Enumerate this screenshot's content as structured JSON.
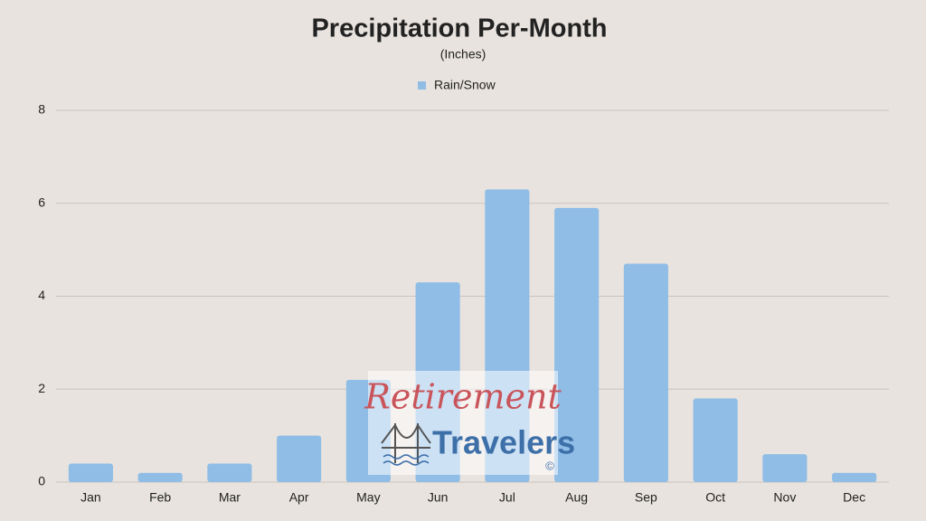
{
  "chart_data": {
    "type": "bar",
    "title": "Precipitation Per-Month",
    "subtitle": "(Inches)",
    "categories": [
      "Jan",
      "Feb",
      "Mar",
      "Apr",
      "May",
      "Jun",
      "Jul",
      "Aug",
      "Sep",
      "Oct",
      "Nov",
      "Dec"
    ],
    "series": [
      {
        "name": "Rain/Snow",
        "color": "#8fbde6",
        "values": [
          0.4,
          0.2,
          0.4,
          1.0,
          2.2,
          4.3,
          6.3,
          5.9,
          4.7,
          1.8,
          0.6,
          0.2
        ]
      }
    ],
    "ylim": [
      0,
      8
    ],
    "yticks": [
      0,
      2,
      4,
      6,
      8
    ],
    "grid": true,
    "legend": "top",
    "watermark": {
      "line1": "Retirement",
      "line2": "Travelers",
      "mark": "©"
    }
  }
}
